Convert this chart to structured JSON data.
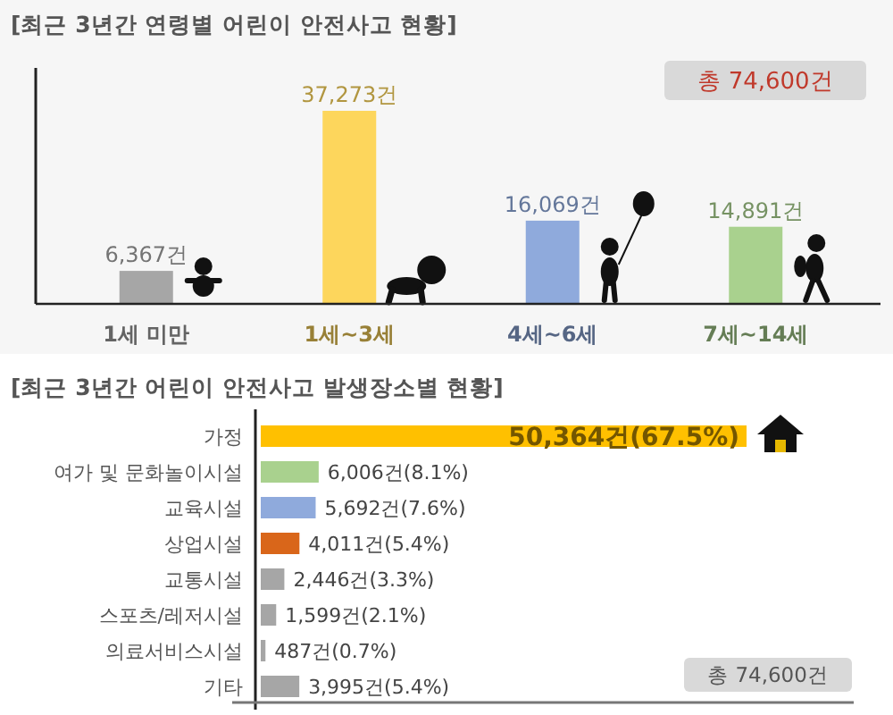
{
  "chart_data": [
    {
      "type": "bar",
      "title": "[최근 3년간 연령별 어린이 안전사고 현황]",
      "categories": [
        "1세 미만",
        "1세~3세",
        "4세~6세",
        "7세~14세"
      ],
      "values": [
        6367,
        37273,
        16069,
        14891
      ],
      "colors": [
        "#a6a6a6",
        "#fdd65c",
        "#8faadc",
        "#a9d18e"
      ],
      "value_labels": [
        "6,367건",
        "37,273건",
        "16,069건",
        "14,891건"
      ],
      "tick_labels": "x",
      "annotations": [
        "총 74,600건"
      ]
    },
    {
      "type": "bar",
      "orientation": "horizontal",
      "title": "[최근 3년간 어린이 안전사고 발생장소별 현황]",
      "categories": [
        "가정",
        "여가 및 문화놀이시설",
        "교육시설",
        "상업시설",
        "교통시설",
        "스포츠/레저시설",
        "의료서비스시설",
        "기타"
      ],
      "values": [
        50364,
        6006,
        5692,
        4011,
        2446,
        1599,
        487,
        3995
      ],
      "colors": [
        "#ffc000",
        "#a9d18e",
        "#8faadc",
        "#d9661a",
        "#a6a6a6",
        "#a6a6a6",
        "#a6a6a6",
        "#a6a6a6"
      ],
      "value_labels": [
        "50,364건(67.5%)",
        "6,006건(8.1%)",
        "5,692건(7.6%)",
        "4,011건(5.4%)",
        "2,446건(3.3%)",
        "1,599건(2.1%)",
        "487건(0.7%)",
        "3,995건(5.4%)"
      ],
      "tick_labels": "y",
      "annotations": [
        "총 74,600건"
      ]
    }
  ]
}
